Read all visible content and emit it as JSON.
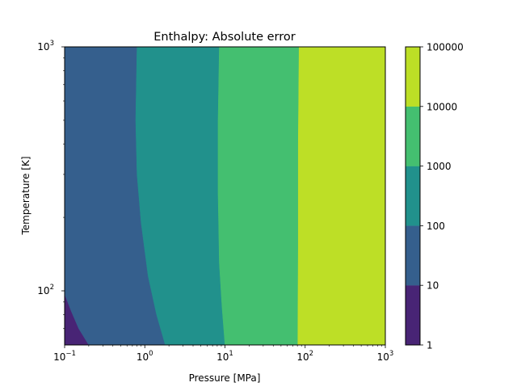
{
  "chart_data": {
    "type": "heatmap",
    "subtype": "filled-contour",
    "title": "Enthalpy: Absolute error",
    "xlabel": "Pressure [MPa]",
    "ylabel": "Temperature [K]",
    "x_scale": "log",
    "y_scale": "log",
    "xlim": [
      0.1,
      1000
    ],
    "ylim": [
      60,
      1000
    ],
    "x_ticks": [
      {
        "base": "10",
        "exp": "−1",
        "value": 0.1
      },
      {
        "base": "10",
        "exp": "0",
        "value": 1
      },
      {
        "base": "10",
        "exp": "1",
        "value": 10
      },
      {
        "base": "10",
        "exp": "2",
        "value": 100
      },
      {
        "base": "10",
        "exp": "3",
        "value": 1000
      }
    ],
    "y_ticks": [
      {
        "base": "10",
        "exp": "2",
        "value": 100
      },
      {
        "base": "10",
        "exp": "3",
        "value": 1000
      }
    ],
    "colorbar": {
      "scale": "log",
      "levels": [
        1,
        10,
        100,
        1000,
        10000,
        100000
      ],
      "tick_labels": [
        "1",
        "10",
        "100",
        "1000",
        "10000",
        "100000"
      ],
      "colors": [
        "#482475",
        "#355f8d",
        "#21918c",
        "#44bf70",
        "#bddf26"
      ]
    },
    "region_boundaries": [
      {
        "between": [
          1,
          10
        ],
        "points": [
          [
            0.1,
            97
          ],
          [
            0.12,
            83
          ],
          [
            0.15,
            70
          ],
          [
            0.2,
            60
          ]
        ]
      },
      {
        "between": [
          10,
          100
        ],
        "points": [
          [
            0.8,
            1000
          ],
          [
            0.77,
            500
          ],
          [
            0.8,
            300
          ],
          [
            0.9,
            190
          ],
          [
            1.1,
            115
          ],
          [
            1.4,
            80
          ],
          [
            1.8,
            60
          ]
        ]
      },
      {
        "between": [
          100,
          1000
        ],
        "points": [
          [
            8.5,
            1000
          ],
          [
            8.2,
            500
          ],
          [
            8.2,
            250
          ],
          [
            8.5,
            130
          ],
          [
            9.2,
            85
          ],
          [
            10.0,
            60
          ]
        ]
      },
      {
        "between": [
          1000,
          10000
        ],
        "points": [
          [
            84,
            1000
          ],
          [
            82,
            400
          ],
          [
            82,
            150
          ],
          [
            81,
            60
          ]
        ]
      },
      {
        "between": [
          10000,
          100000
        ],
        "points": [
          [
            1000,
            1000
          ],
          [
            1000,
            60
          ]
        ]
      }
    ]
  }
}
